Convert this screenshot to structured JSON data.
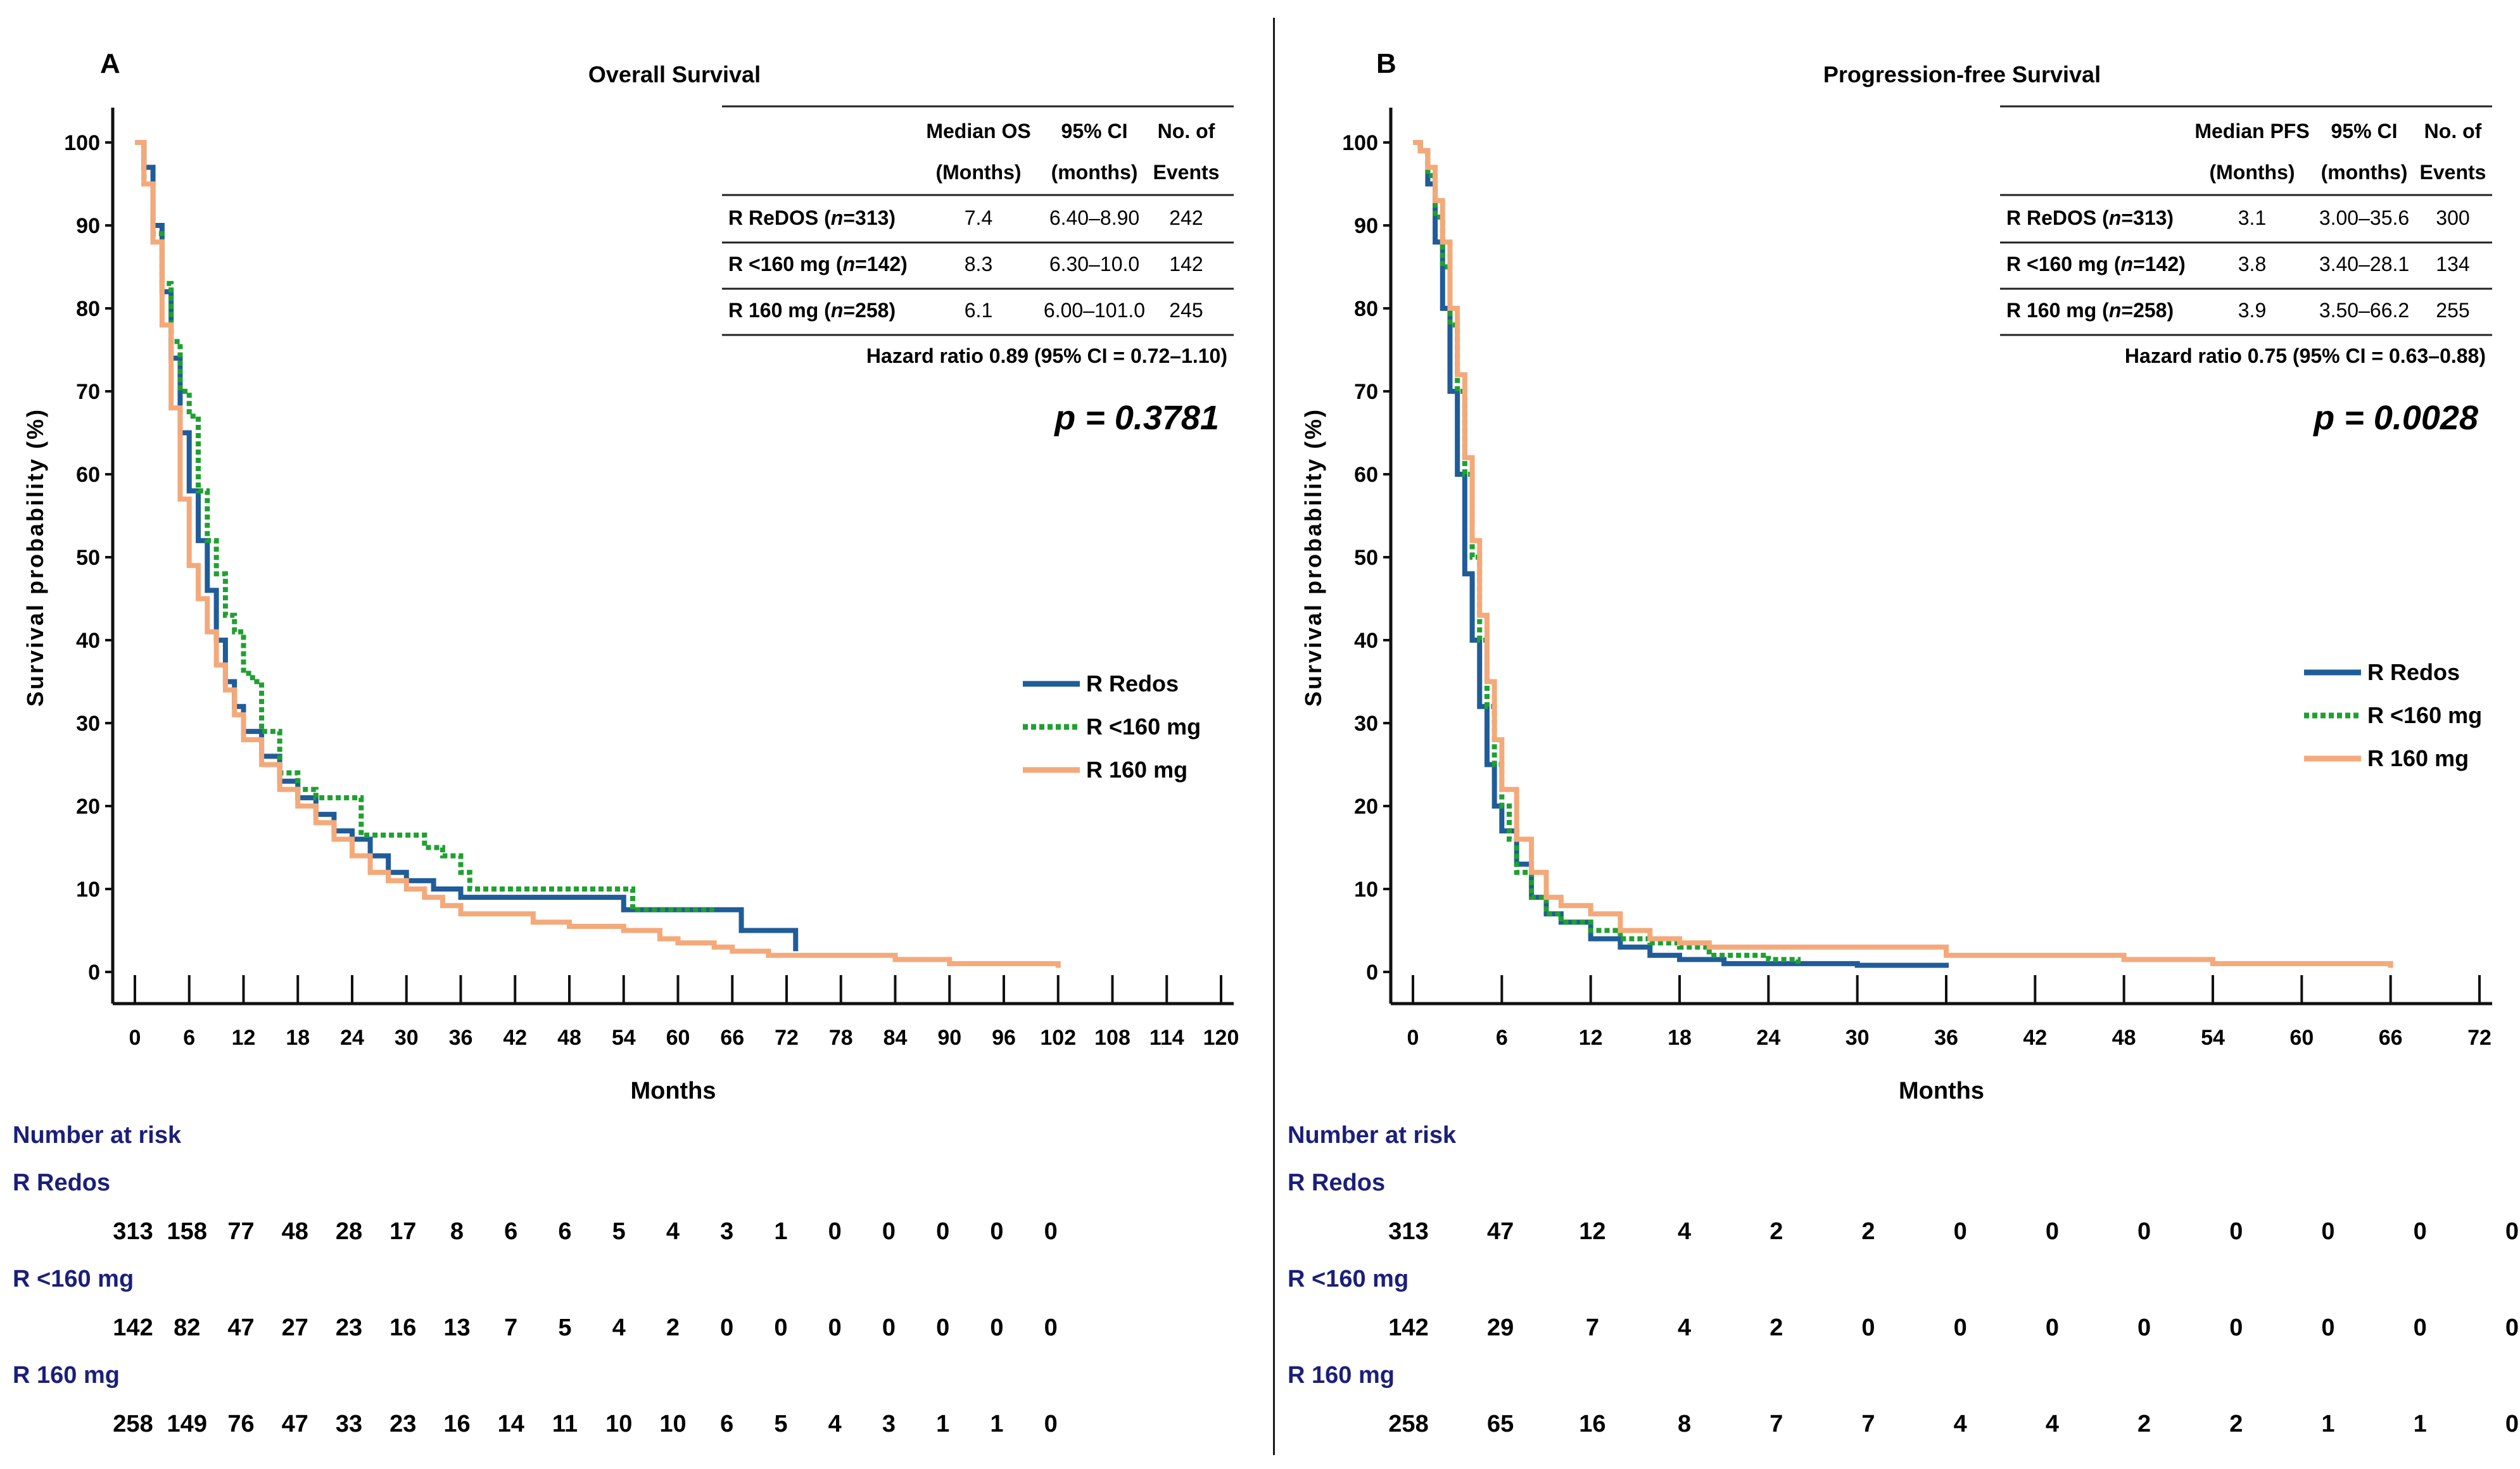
{
  "chart_data": [
    {
      "type": "line",
      "panel_letter": "A",
      "title": "Overall Survival",
      "xlabel": "Months",
      "ylabel": "Survival probability (%)",
      "xlim": [
        0,
        120
      ],
      "ylim": [
        0,
        100
      ],
      "x_ticks": [
        0,
        6,
        12,
        18,
        24,
        30,
        36,
        42,
        48,
        54,
        60,
        66,
        72,
        78,
        84,
        90,
        96,
        102,
        108,
        114,
        120
      ],
      "y_ticks": [
        0,
        10,
        20,
        30,
        40,
        50,
        60,
        70,
        80,
        90,
        100
      ],
      "table": {
        "headers": [
          [
            "",
            "Median OS",
            "95% CI",
            "No. of"
          ],
          [
            "",
            "(Months)",
            "(months)",
            "Events"
          ]
        ],
        "rows": [
          {
            "group": "R ReDOS",
            "n": "n=313",
            "median": "7.4",
            "ci": "6.40–8.90",
            "events": "242"
          },
          {
            "group": "R <160 mg",
            "n": "n=142",
            "median": "8.3",
            "ci": "6.30–10.0",
            "events": "142"
          },
          {
            "group": "R 160 mg",
            "n": "n=258",
            "median": "6.1",
            "ci": "6.00–101.0",
            "events": "245"
          }
        ],
        "hazard": "Hazard ratio 0.89 (95% CI = 0.72–1.10)"
      },
      "p_value": "p = 0.3781",
      "legend_position": "middle-right",
      "series": [
        {
          "name": "R Redos",
          "color": "#1f5c99",
          "style": "solid",
          "points": [
            [
              0,
              100
            ],
            [
              1,
              97
            ],
            [
              2,
              90
            ],
            [
              3,
              82
            ],
            [
              4,
              74
            ],
            [
              5,
              65
            ],
            [
              6,
              58
            ],
            [
              7,
              52
            ],
            [
              8,
              46
            ],
            [
              9,
              40
            ],
            [
              10,
              35
            ],
            [
              11,
              32
            ],
            [
              12,
              29
            ],
            [
              14,
              26
            ],
            [
              16,
              23
            ],
            [
              18,
              21
            ],
            [
              20,
              19
            ],
            [
              22,
              17
            ],
            [
              24,
              16
            ],
            [
              26,
              14
            ],
            [
              28,
              12
            ],
            [
              30,
              11
            ],
            [
              33,
              10
            ],
            [
              36,
              9
            ],
            [
              42,
              9
            ],
            [
              48,
              9
            ],
            [
              53,
              9
            ],
            [
              54,
              7.5
            ],
            [
              60,
              7.5
            ],
            [
              66,
              7.5
            ],
            [
              67,
              5
            ],
            [
              72,
              5
            ],
            [
              73,
              2.5
            ]
          ]
        },
        {
          "name": "R <160 mg",
          "color": "#1fa030",
          "style": "dotted",
          "points": [
            [
              0,
              100
            ],
            [
              1,
              95
            ],
            [
              2,
              89
            ],
            [
              3,
              83
            ],
            [
              4,
              76
            ],
            [
              5,
              70
            ],
            [
              6,
              67
            ],
            [
              7,
              58
            ],
            [
              8,
              52
            ],
            [
              9,
              48
            ],
            [
              10,
              43
            ],
            [
              11,
              41
            ],
            [
              12,
              36
            ],
            [
              13,
              35
            ],
            [
              14,
              29
            ],
            [
              16,
              24
            ],
            [
              18,
              22
            ],
            [
              20,
              21
            ],
            [
              24,
              21
            ],
            [
              25,
              16.5
            ],
            [
              30,
              16.5
            ],
            [
              32,
              15
            ],
            [
              34,
              14
            ],
            [
              36,
              12
            ],
            [
              37,
              10
            ],
            [
              42,
              10
            ],
            [
              48,
              10
            ],
            [
              54,
              10
            ],
            [
              55,
              7.5
            ],
            [
              60,
              7.5
            ],
            [
              64,
              7.5
            ]
          ]
        },
        {
          "name": "R 160 mg",
          "color": "#f4a97a",
          "style": "solid",
          "points": [
            [
              0,
              100
            ],
            [
              1,
              95
            ],
            [
              2,
              88
            ],
            [
              3,
              78
            ],
            [
              4,
              68
            ],
            [
              5,
              57
            ],
            [
              6,
              49
            ],
            [
              7,
              45
            ],
            [
              8,
              41
            ],
            [
              9,
              37
            ],
            [
              10,
              34
            ],
            [
              11,
              31
            ],
            [
              12,
              28
            ],
            [
              14,
              25
            ],
            [
              16,
              22
            ],
            [
              18,
              20
            ],
            [
              20,
              18
            ],
            [
              22,
              16
            ],
            [
              24,
              14
            ],
            [
              26,
              12
            ],
            [
              28,
              11
            ],
            [
              30,
              10
            ],
            [
              32,
              9
            ],
            [
              34,
              8
            ],
            [
              36,
              7
            ],
            [
              40,
              7
            ],
            [
              44,
              6
            ],
            [
              48,
              5.5
            ],
            [
              54,
              5
            ],
            [
              58,
              4
            ],
            [
              60,
              3.5
            ],
            [
              64,
              3
            ],
            [
              66,
              2.5
            ],
            [
              70,
              2
            ],
            [
              78,
              2
            ],
            [
              84,
              1.5
            ],
            [
              90,
              1
            ],
            [
              96,
              1
            ],
            [
              102,
              0.5
            ]
          ]
        }
      ]
    },
    {
      "type": "line",
      "panel_letter": "B",
      "title": "Progression-free Survival",
      "xlabel": "Months",
      "ylabel": "Survival probability (%)",
      "xlim": [
        0,
        72
      ],
      "ylim": [
        0,
        100
      ],
      "x_ticks": [
        0,
        6,
        12,
        18,
        24,
        30,
        36,
        42,
        48,
        54,
        60,
        66,
        72
      ],
      "y_ticks": [
        0,
        10,
        20,
        30,
        40,
        50,
        60,
        70,
        80,
        90,
        100
      ],
      "table": {
        "headers": [
          [
            "",
            "Median PFS",
            "95% CI",
            "No. of"
          ],
          [
            "",
            "(Months)",
            "(months)",
            "Events"
          ]
        ],
        "rows": [
          {
            "group": "R ReDOS",
            "n": "n=313",
            "median": "3.1",
            "ci": "3.00–35.6",
            "events": "300"
          },
          {
            "group": "R <160 mg",
            "n": "n=142",
            "median": "3.8",
            "ci": "3.40–28.1",
            "events": "134"
          },
          {
            "group": "R 160 mg",
            "n": "n=258",
            "median": "3.9",
            "ci": "3.50–66.2",
            "events": "255"
          }
        ],
        "hazard": "Hazard ratio 0.75 (95% CI = 0.63–0.88)"
      },
      "p_value": "p = 0.0028",
      "legend_position": "middle-right",
      "series": [
        {
          "name": "R Redos",
          "color": "#1f5c99",
          "style": "solid",
          "points": [
            [
              0,
              100
            ],
            [
              0.5,
              99
            ],
            [
              1,
              95
            ],
            [
              1.5,
              88
            ],
            [
              2,
              80
            ],
            [
              2.5,
              70
            ],
            [
              3,
              60
            ],
            [
              3.5,
              48
            ],
            [
              4,
              40
            ],
            [
              4.5,
              32
            ],
            [
              5,
              25
            ],
            [
              5.5,
              20
            ],
            [
              6,
              17
            ],
            [
              7,
              13
            ],
            [
              8,
              9
            ],
            [
              9,
              7
            ],
            [
              10,
              6
            ],
            [
              12,
              4
            ],
            [
              14,
              3
            ],
            [
              16,
              2
            ],
            [
              18,
              1.5
            ],
            [
              21,
              1
            ],
            [
              24,
              1
            ],
            [
              30,
              0.8
            ],
            [
              36,
              0.5
            ]
          ]
        },
        {
          "name": "R <160 mg",
          "color": "#1fa030",
          "style": "dotted",
          "points": [
            [
              0,
              100
            ],
            [
              0.5,
              99
            ],
            [
              1,
              96
            ],
            [
              1.5,
              91
            ],
            [
              2,
              85
            ],
            [
              2.5,
              78
            ],
            [
              3,
              70
            ],
            [
              3.5,
              60
            ],
            [
              4,
              50
            ],
            [
              4.5,
              40
            ],
            [
              5,
              32
            ],
            [
              5.5,
              25
            ],
            [
              6,
              20
            ],
            [
              6.5,
              16
            ],
            [
              7,
              12
            ],
            [
              8,
              9
            ],
            [
              9,
              7
            ],
            [
              10,
              6
            ],
            [
              12,
              5
            ],
            [
              14,
              4
            ],
            [
              16,
              3.5
            ],
            [
              18,
              3
            ],
            [
              20,
              2
            ],
            [
              24,
              1.5
            ],
            [
              26,
              1
            ]
          ]
        },
        {
          "name": "R 160 mg",
          "color": "#f4a97a",
          "style": "solid",
          "points": [
            [
              0,
              100
            ],
            [
              0.5,
              99
            ],
            [
              1,
              97
            ],
            [
              1.5,
              93
            ],
            [
              2,
              88
            ],
            [
              2.5,
              80
            ],
            [
              3,
              72
            ],
            [
              3.5,
              62
            ],
            [
              4,
              52
            ],
            [
              4.5,
              43
            ],
            [
              5,
              35
            ],
            [
              5.5,
              28
            ],
            [
              6,
              22
            ],
            [
              7,
              16
            ],
            [
              8,
              12
            ],
            [
              9,
              9
            ],
            [
              10,
              8
            ],
            [
              12,
              7
            ],
            [
              14,
              5
            ],
            [
              16,
              4
            ],
            [
              18,
              3.5
            ],
            [
              20,
              3
            ],
            [
              24,
              3
            ],
            [
              30,
              3
            ],
            [
              36,
              2
            ],
            [
              42,
              2
            ],
            [
              48,
              1.5
            ],
            [
              54,
              1
            ],
            [
              60,
              1
            ],
            [
              66,
              0.5
            ]
          ]
        }
      ]
    }
  ],
  "risk_tables": [
    {
      "title": "Number at risk",
      "groups": [
        {
          "name": "R Redos",
          "values": [
            313,
            158,
            77,
            48,
            28,
            17,
            8,
            6,
            6,
            5,
            4,
            3,
            1,
            0,
            0,
            0,
            0,
            0
          ]
        },
        {
          "name": "R <160 mg",
          "values": [
            142,
            82,
            47,
            27,
            23,
            16,
            13,
            7,
            5,
            4,
            2,
            0,
            0,
            0,
            0,
            0,
            0,
            0
          ]
        },
        {
          "name": "R 160 mg",
          "values": [
            258,
            149,
            76,
            47,
            33,
            23,
            16,
            14,
            11,
            10,
            10,
            6,
            5,
            4,
            3,
            1,
            1,
            0
          ]
        }
      ]
    },
    {
      "title": "Number at risk",
      "groups": [
        {
          "name": "R Redos",
          "values": [
            313,
            47,
            12,
            4,
            2,
            2,
            0,
            0,
            0,
            0,
            0,
            0,
            0
          ]
        },
        {
          "name": "R <160 mg",
          "values": [
            142,
            29,
            7,
            4,
            2,
            0,
            0,
            0,
            0,
            0,
            0,
            0,
            0
          ]
        },
        {
          "name": "R 160 mg",
          "values": [
            258,
            65,
            16,
            8,
            7,
            7,
            4,
            4,
            2,
            2,
            1,
            1,
            0
          ]
        }
      ]
    }
  ]
}
